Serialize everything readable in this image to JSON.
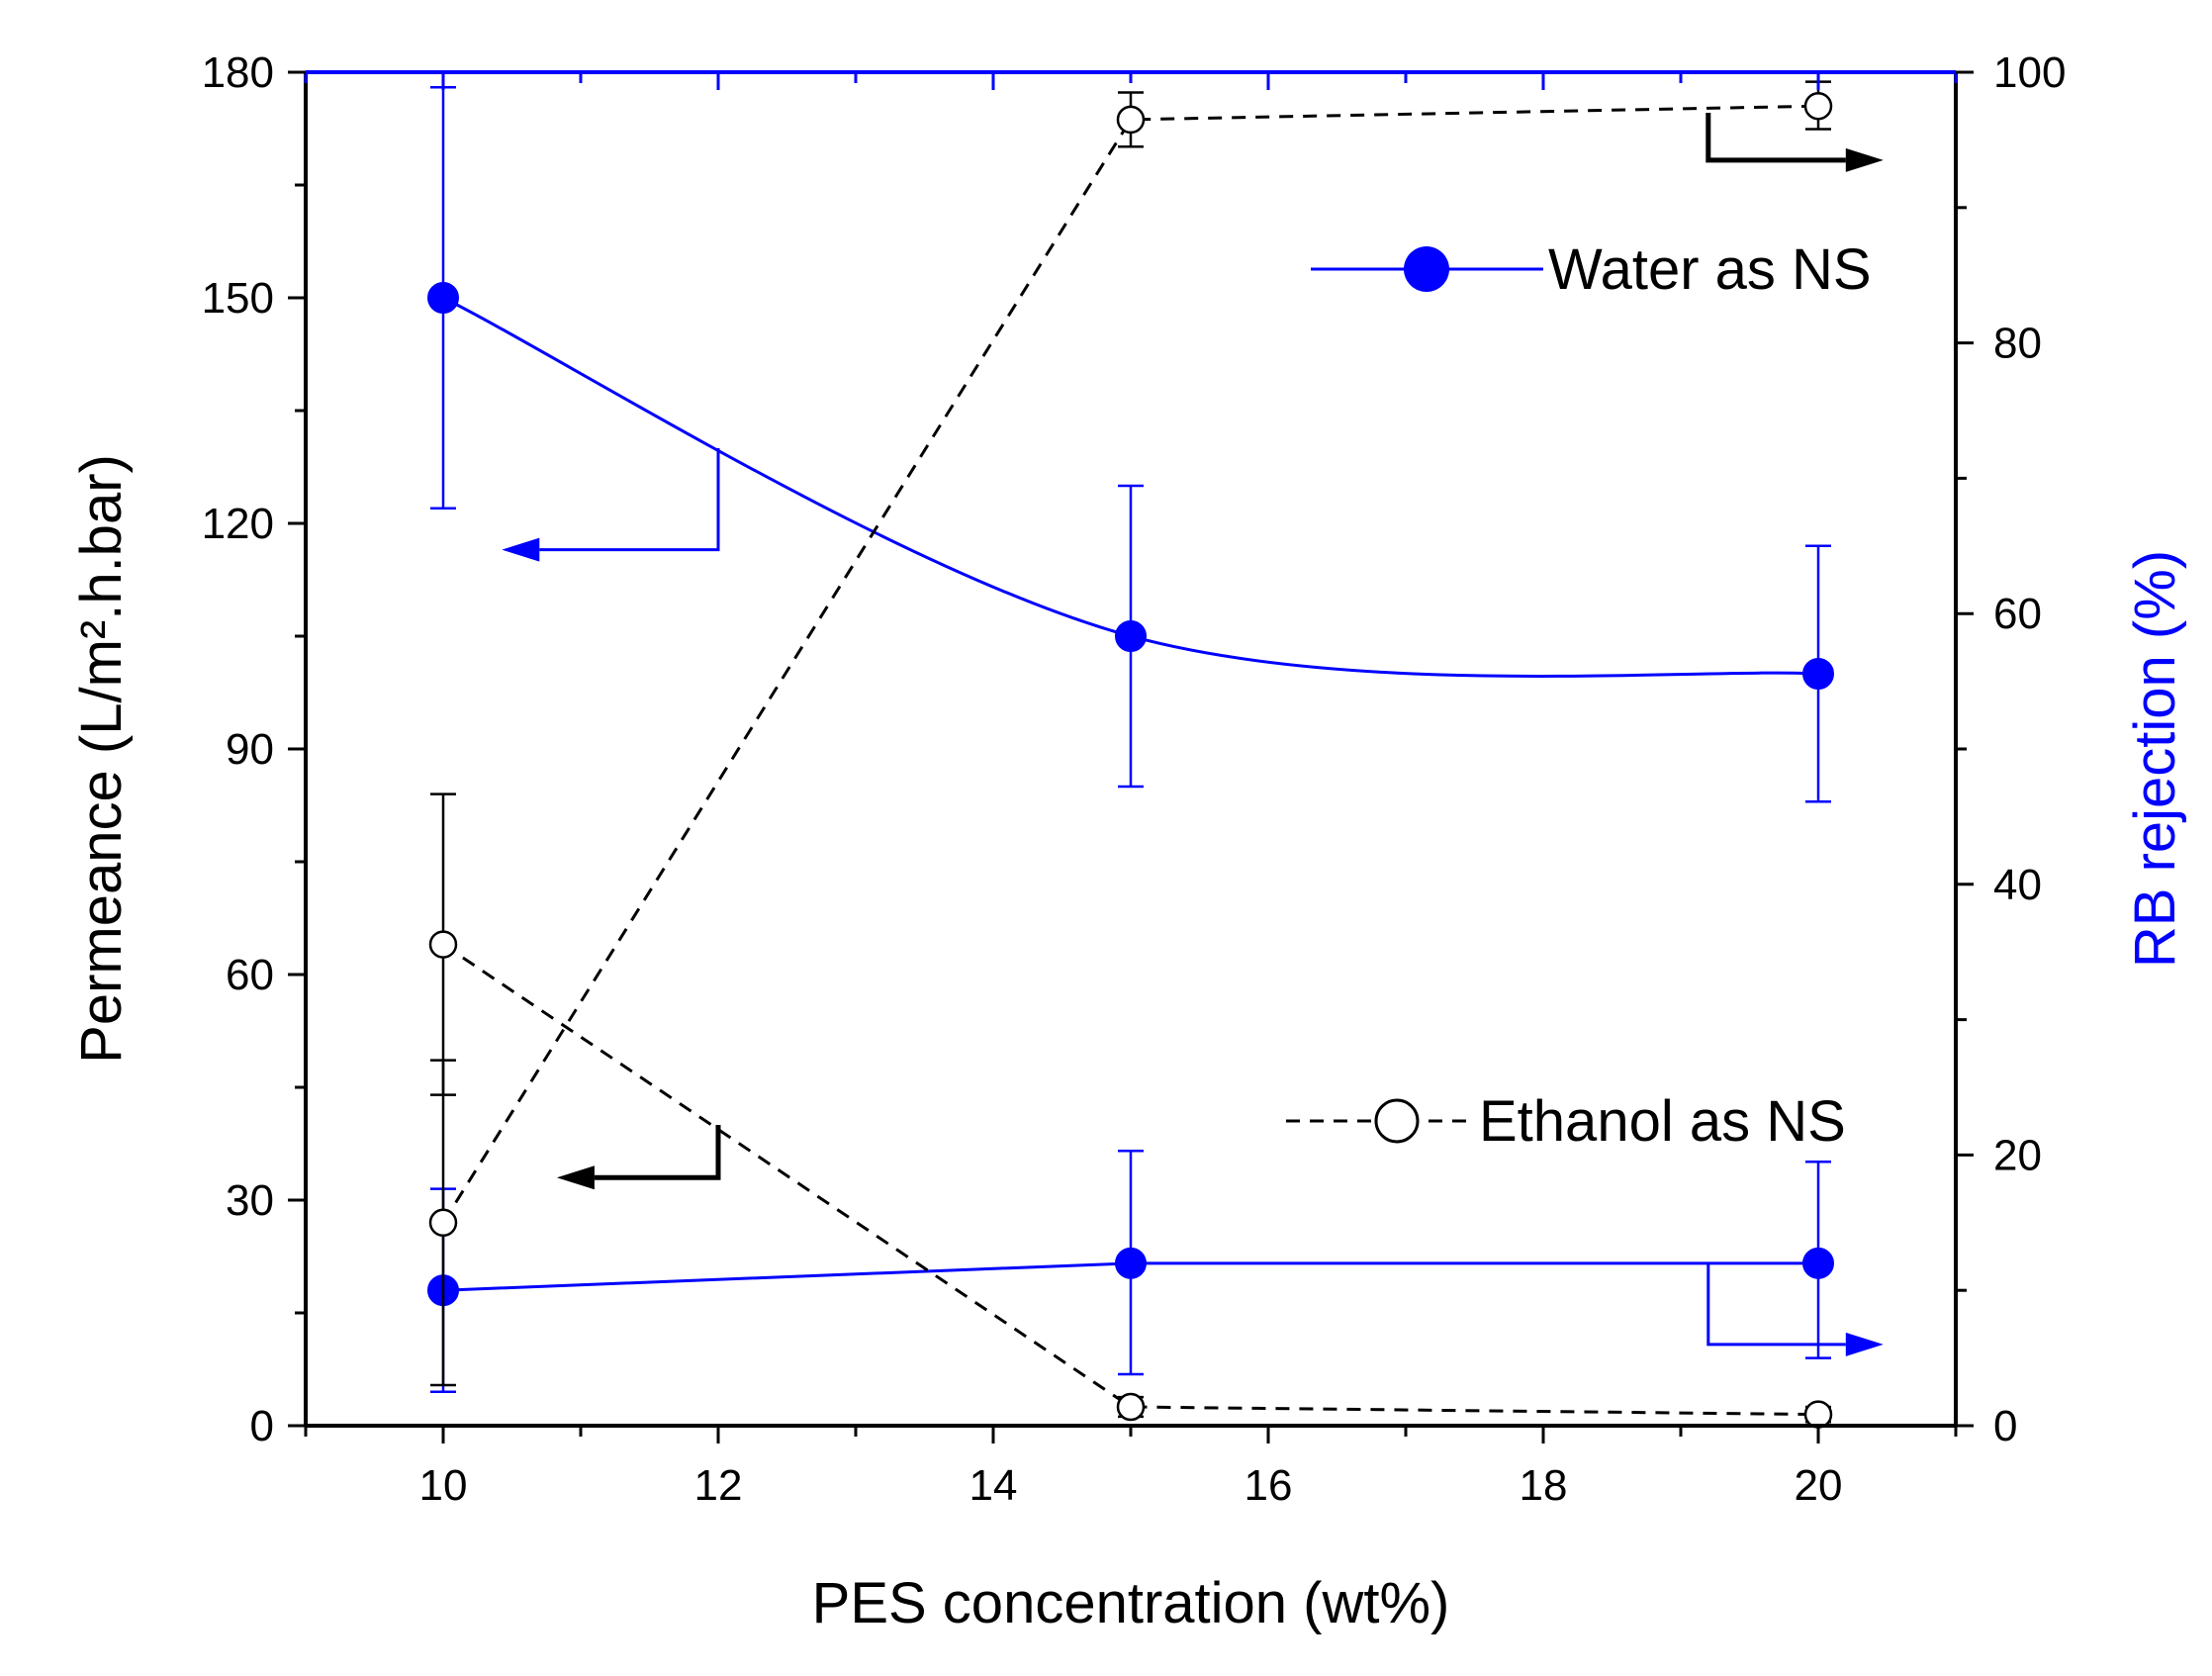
{
  "chart_data": {
    "type": "line",
    "xlabel": "PES concentration (wt%)",
    "ylabel_left": "Permeance (L/m².h.bar)",
    "ylabel_right": "RB rejection (%)",
    "xlim": [
      9,
      21
    ],
    "ylim_left": [
      0,
      180
    ],
    "ylim_right": [
      0,
      100
    ],
    "x_ticks": [
      10,
      12,
      14,
      16,
      18,
      20
    ],
    "y_left_ticks": [
      0,
      30,
      60,
      90,
      120,
      150,
      180
    ],
    "y_right_ticks": [
      0,
      20,
      40,
      60,
      80,
      100
    ],
    "legend": [
      {
        "label": "Water as NS",
        "marker": "filled-circle",
        "line": "solid",
        "color": "#0000ff"
      },
      {
        "label": "Ethanol as NS",
        "marker": "open-circle",
        "line": "dashed",
        "color": "#000000"
      }
    ],
    "series": [
      {
        "name": "Water as NS - Permeance",
        "axis": "left",
        "color": "#0000ff",
        "marker": "filled",
        "line": "solid-smooth",
        "x": [
          10,
          15,
          20
        ],
        "y": [
          150,
          105,
          100
        ],
        "err_low": [
          122,
          85,
          83
        ],
        "err_high": [
          178,
          125,
          117
        ]
      },
      {
        "name": "Water as NS - RB rejection",
        "axis": "right",
        "color": "#0000ff",
        "marker": "filled",
        "line": "solid",
        "x": [
          10,
          15,
          20
        ],
        "y": [
          10,
          12,
          12
        ],
        "err_low": [
          2.5,
          3.8,
          5
        ],
        "err_high": [
          17.5,
          20.3,
          19.5
        ]
      },
      {
        "name": "Ethanol as NS - Permeance",
        "axis": "left",
        "color": "#000000",
        "marker": "open",
        "line": "dashed",
        "x": [
          10,
          15,
          20
        ],
        "y": [
          64,
          2.5,
          1.5
        ],
        "err_low": [
          44,
          1.2,
          0.5
        ],
        "err_high": [
          84,
          3.8,
          2.5
        ]
      },
      {
        "name": "Ethanol as NS - RB rejection",
        "axis": "right",
        "color": "#000000",
        "marker": "open",
        "line": "dashed",
        "x": [
          10,
          15,
          20
        ],
        "y": [
          15,
          96.5,
          97.5
        ],
        "err_low": [
          3,
          94.5,
          95.8
        ],
        "err_high": [
          27,
          98.5,
          99.3
        ]
      }
    ],
    "annotations": [
      {
        "type": "axis-arrow",
        "points_to": "left",
        "color": "#0000ff",
        "note": "blue upper curve uses left axis"
      },
      {
        "type": "axis-arrow",
        "points_to": "left",
        "color": "#000000",
        "note": "black lower curve uses left axis"
      },
      {
        "type": "axis-arrow",
        "points_to": "right",
        "color": "#000000",
        "note": "black upper curve uses right axis"
      },
      {
        "type": "axis-arrow",
        "points_to": "right",
        "color": "#0000ff",
        "note": "blue lower curve uses right axis"
      }
    ]
  }
}
